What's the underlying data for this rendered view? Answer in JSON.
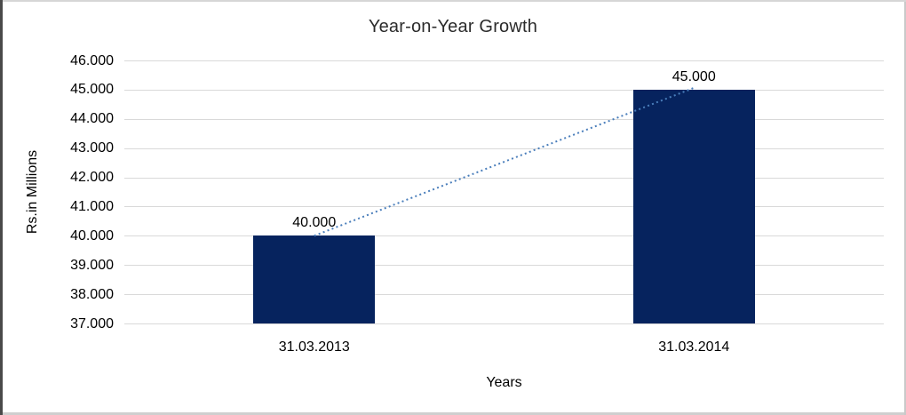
{
  "chart_data": {
    "type": "bar",
    "title": "Year-on-Year Growth",
    "xlabel": "Years",
    "ylabel": "Rs.in Millions",
    "categories": [
      "31.03.2013",
      "31.03.2014"
    ],
    "values": [
      40000,
      45000
    ],
    "data_labels": [
      "40.000",
      "45.000"
    ],
    "yticks": [
      "46.000",
      "45.000",
      "44.000",
      "43.000",
      "42.000",
      "41.000",
      "40.000",
      "39.000",
      "38.000",
      "37.000"
    ],
    "ylim": [
      37000,
      46000
    ],
    "grid": true,
    "legend_position": "none",
    "bar_color": "#06235e",
    "gridline_color": "#d9d9d9",
    "trendline": {
      "style": "dotted",
      "color": "#4a7ebb",
      "from_label": "40.000",
      "to_label": "45.000"
    }
  }
}
